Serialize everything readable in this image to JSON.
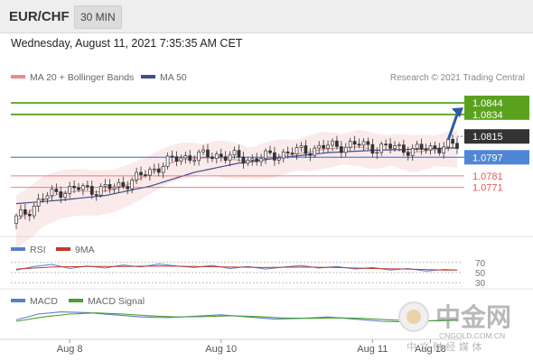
{
  "header": {
    "symbol": "EUR/CHF",
    "interval": "30 MIN",
    "datetime": "Wednesday, August 11, 2021 7:35:35 AM CET"
  },
  "colors": {
    "ma20": "#e98c8c",
    "ma50": "#3f4f8c",
    "target_line": "#5aa21e",
    "current_label": "#333333",
    "support_line": "#4f86d6",
    "resistance_line": "#e05a5a",
    "arrow": "#2c5aa0",
    "rsi": "#5a7fc8",
    "rsi_ma": "#c0392b",
    "macd": "#5a7fc8",
    "macd_signal": "#4aa02c"
  },
  "chart_data": [
    {
      "type": "candlestick",
      "legend": [
        {
          "name": "MA 20 + Bollinger Bands",
          "color": "#e98c8c"
        },
        {
          "name": "MA 50",
          "color": "#3f4f8c"
        }
      ],
      "credit": "Research © 2021 Trading Central",
      "ylim": [
        1.0738,
        1.0858
      ],
      "x_ticks": [
        "Aug 8",
        "Aug 10",
        "Aug 11",
        "Aug 18"
      ],
      "x_tick_index": [
        12,
        46,
        80,
        93
      ],
      "candle_count": 100,
      "close_path": [
        [
          0,
          1.0744
        ],
        [
          3,
          1.0752
        ],
        [
          6,
          1.0762
        ],
        [
          10,
          1.0768
        ],
        [
          14,
          1.077
        ],
        [
          18,
          1.0769
        ],
        [
          22,
          1.0771
        ],
        [
          26,
          1.0777
        ],
        [
          30,
          1.0785
        ],
        [
          34,
          1.0793
        ],
        [
          37,
          1.0797
        ],
        [
          41,
          1.0798
        ],
        [
          45,
          1.0799
        ],
        [
          49,
          1.0797
        ],
        [
          53,
          1.0795
        ],
        [
          57,
          1.0798
        ],
        [
          61,
          1.0801
        ],
        [
          65,
          1.0803
        ],
        [
          69,
          1.0806
        ],
        [
          73,
          1.0807
        ],
        [
          77,
          1.0808
        ],
        [
          81,
          1.0805
        ],
        [
          85,
          1.0806
        ],
        [
          89,
          1.0803
        ],
        [
          93,
          1.0805
        ],
        [
          97,
          1.0807
        ]
      ],
      "ma50_path": [
        [
          0,
          1.0757
        ],
        [
          10,
          1.076
        ],
        [
          20,
          1.0764
        ],
        [
          30,
          1.0772
        ],
        [
          40,
          1.0784
        ],
        [
          50,
          1.0792
        ],
        [
          60,
          1.0797
        ],
        [
          70,
          1.0801
        ],
        [
          80,
          1.0803
        ],
        [
          90,
          1.0804
        ],
        [
          97,
          1.0805
        ]
      ],
      "levels": [
        {
          "label": "1.0844",
          "value": 1.0844,
          "kind": "target"
        },
        {
          "label": "1.0834",
          "value": 1.0834,
          "kind": "target"
        },
        {
          "label": "1.0815",
          "value": 1.0815,
          "kind": "current"
        },
        {
          "label": "1.0797",
          "value": 1.0797,
          "kind": "support"
        },
        {
          "label": "1.0781",
          "value": 1.0781,
          "kind": "resistance"
        },
        {
          "label": "1.0771",
          "value": 1.0771,
          "kind": "resistance"
        }
      ],
      "arrow": {
        "from": [
          97,
          1.0812
        ],
        "to": [
          100,
          1.084
        ]
      }
    },
    {
      "type": "line",
      "panel": "RSI",
      "legend": [
        {
          "name": "RSI",
          "color": "#5a7fc8"
        },
        {
          "name": "9MA",
          "color": "#c0392b"
        }
      ],
      "ylim": [
        25,
        75
      ],
      "y_ticks": [
        "70",
        "50",
        "30"
      ],
      "series": [
        {
          "name": "RSI",
          "x": [
            0,
            4,
            8,
            12,
            16,
            20,
            24,
            28,
            32,
            36,
            40,
            44,
            48,
            52,
            56,
            60,
            64,
            68,
            72,
            76,
            80,
            84,
            88,
            92,
            96,
            99
          ],
          "values": [
            55,
            62,
            66,
            58,
            63,
            59,
            65,
            61,
            67,
            63,
            60,
            64,
            58,
            62,
            57,
            61,
            64,
            59,
            62,
            57,
            60,
            55,
            58,
            53,
            56,
            55
          ]
        },
        {
          "name": "9MA",
          "x": [
            0,
            8,
            16,
            24,
            32,
            40,
            48,
            56,
            64,
            72,
            80,
            88,
            96,
            99
          ],
          "values": [
            57,
            61,
            62,
            62,
            63,
            62,
            61,
            60,
            61,
            60,
            58,
            57,
            55,
            55
          ]
        }
      ]
    },
    {
      "type": "line",
      "panel": "MACD",
      "legend": [
        {
          "name": "MACD",
          "color": "#5a7fc8"
        },
        {
          "name": "MACD Signal",
          "color": "#4aa02c"
        }
      ],
      "ylim": [
        -10,
        10
      ],
      "series": [
        {
          "name": "MACD",
          "x": [
            0,
            5,
            10,
            16,
            22,
            28,
            34,
            40,
            46,
            52,
            58,
            64,
            70,
            76,
            82,
            88,
            94,
            99
          ],
          "values": [
            1,
            5,
            6.5,
            6,
            4.5,
            3,
            2.5,
            3.5,
            4.5,
            3,
            1.5,
            2,
            3,
            1.5,
            0,
            -0.5,
            0.5,
            1
          ]
        },
        {
          "name": "MACD Signal",
          "x": [
            0,
            6,
            12,
            18,
            24,
            30,
            36,
            42,
            48,
            54,
            60,
            66,
            72,
            78,
            84,
            90,
            96,
            99
          ],
          "values": [
            0,
            3,
            5,
            5.8,
            5,
            3.8,
            3,
            3.2,
            3.8,
            3.3,
            2.3,
            2,
            2.4,
            2,
            1,
            0.3,
            0.4,
            0.7
          ]
        }
      ]
    }
  ],
  "watermark": {
    "name": "中金网",
    "domain": "CNGOLD.COM.CN",
    "tagline": "中 文 财 经 媒 体"
  }
}
